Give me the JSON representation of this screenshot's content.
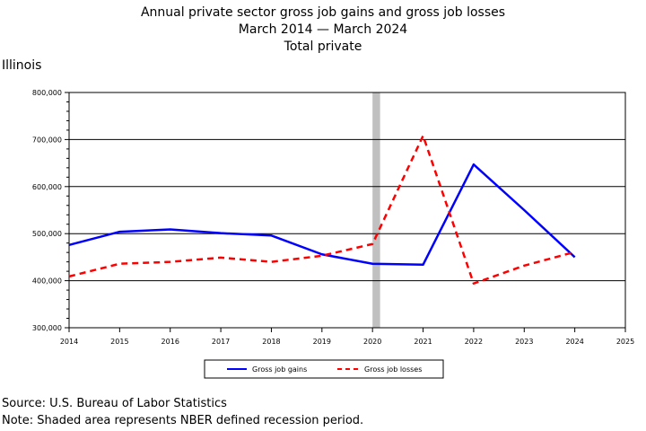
{
  "title": {
    "line1": "Annual private sector gross job gains and gross job losses",
    "line2": "March 2014 — March 2024",
    "line3": "Total private"
  },
  "region": "Illinois",
  "footer": {
    "source": "Source: U.S. Bureau of Labor Statistics",
    "note": "Note: Shaded area represents NBER defined recession period."
  },
  "chart_data": {
    "type": "line",
    "x": [
      2014,
      2015,
      2016,
      2017,
      2018,
      2019,
      2020,
      2021,
      2022,
      2023,
      2024
    ],
    "xlim": [
      2014,
      2025
    ],
    "xticks": [
      "2014",
      "2015",
      "2016",
      "2017",
      "2018",
      "2019",
      "2020",
      "2021",
      "2022",
      "2023",
      "2024",
      "2025"
    ],
    "ylim": [
      300000,
      800000
    ],
    "yticks": [
      "300,000",
      "400,000",
      "500,000",
      "600,000",
      "700,000",
      "800,000"
    ],
    "recession": {
      "start": 2020,
      "end": 2020.15,
      "color": "#c0c0c0"
    },
    "grid": true,
    "legend_position": "bottom",
    "series": [
      {
        "name": "Gross job gains",
        "color": "#0000ff",
        "dash": "solid",
        "values": [
          476000,
          504000,
          509000,
          501000,
          496000,
          456000,
          436000,
          434000,
          647000,
          550000,
          450000
        ]
      },
      {
        "name": "Gross job losses",
        "color": "#ff0000",
        "dash": "dashed",
        "values": [
          409000,
          436000,
          440000,
          449000,
          440000,
          453000,
          478000,
          708000,
          394000,
          432000,
          461000
        ]
      }
    ]
  }
}
